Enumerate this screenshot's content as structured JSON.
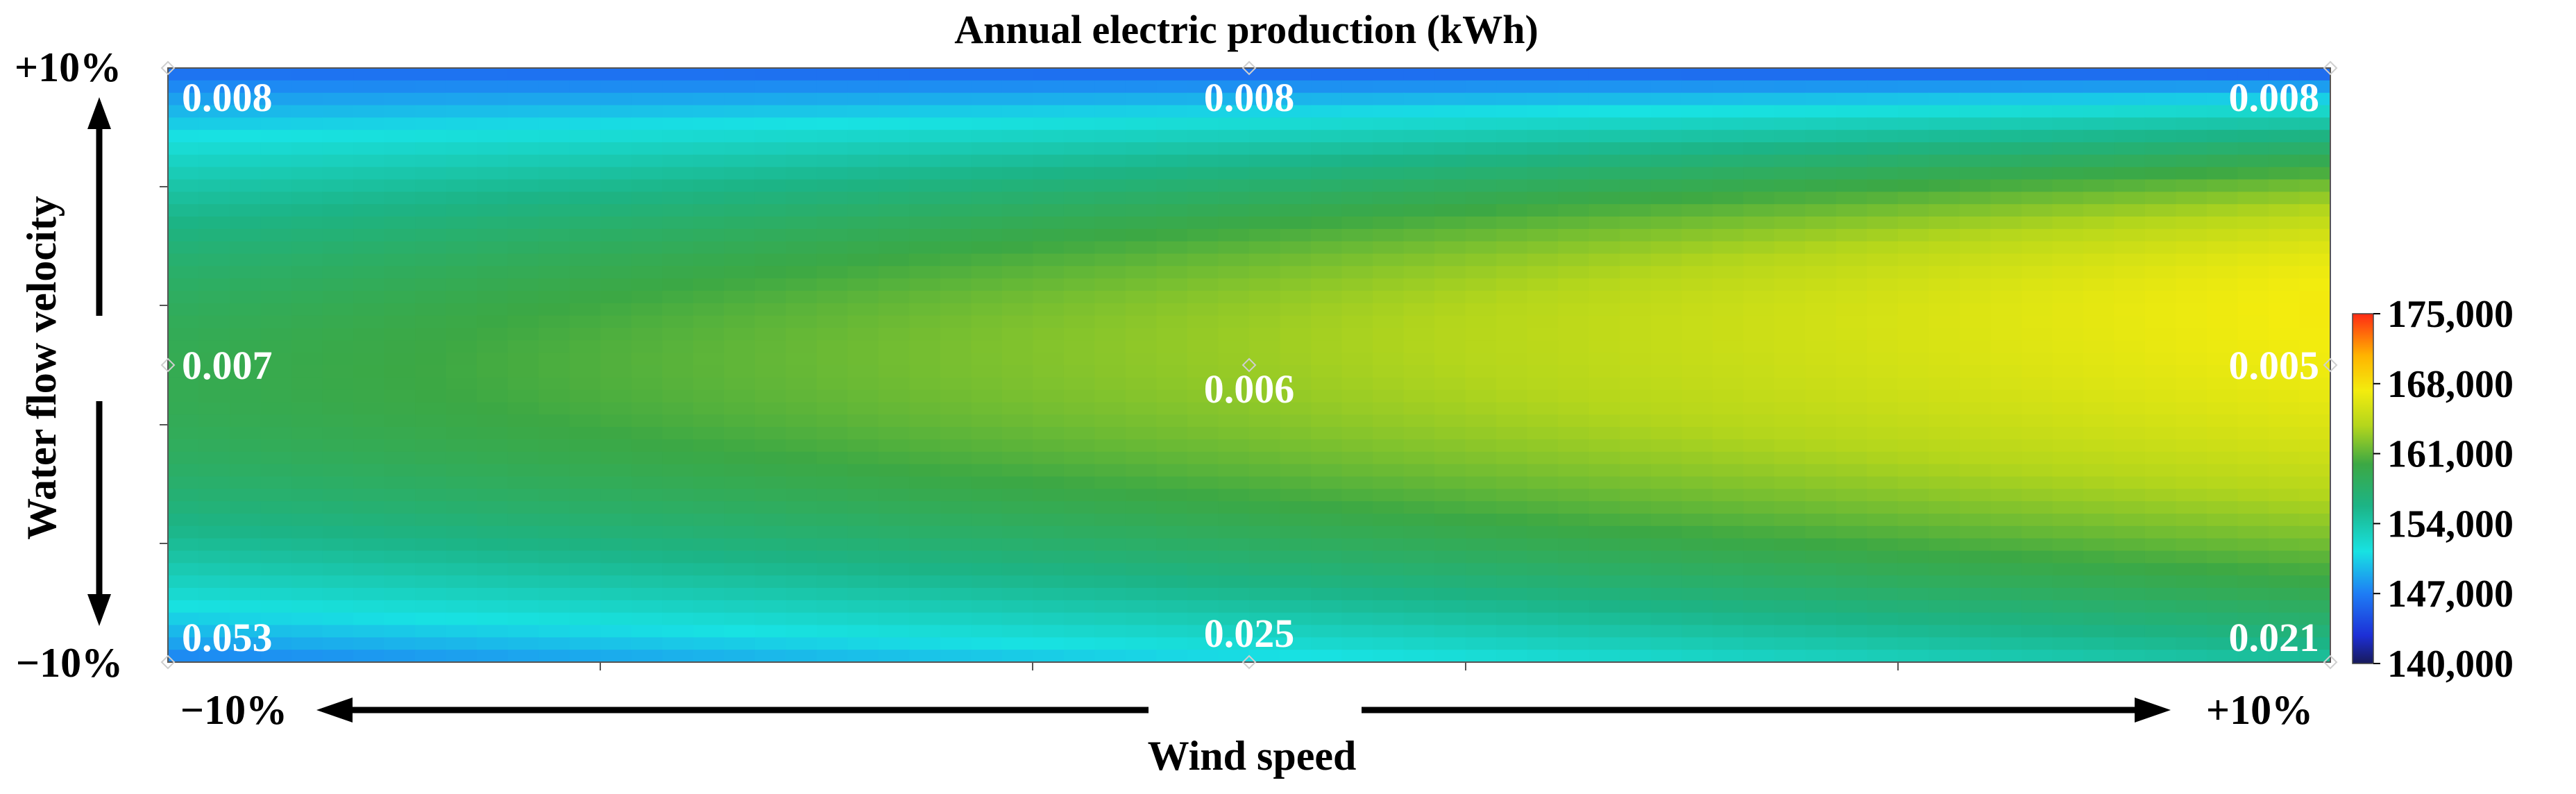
{
  "chart_data": {
    "type": "heatmap",
    "title": "Annual electric production (kWh)",
    "xlabel": "Wind speed",
    "ylabel": "Water flow velocity",
    "x_ticks": [
      "−10%",
      "+10%"
    ],
    "y_ticks": [
      "+10%",
      "−10%"
    ],
    "x": [
      -10,
      0,
      10
    ],
    "y": [
      10,
      0,
      -10
    ],
    "z_estimated_kwh": [
      [
        146000,
        145500,
        145000
      ],
      [
        159000,
        163000,
        167500
      ],
      [
        147000,
        150500,
        154500
      ]
    ],
    "point_labels": [
      {
        "value": "0.008",
        "x": -10,
        "y": 10
      },
      {
        "value": "0.008",
        "x": 0,
        "y": 10
      },
      {
        "value": "0.008",
        "x": 10,
        "y": 10
      },
      {
        "value": "0.007",
        "x": -10,
        "y": 0
      },
      {
        "value": "0.006",
        "x": 0,
        "y": 0
      },
      {
        "value": "0.005",
        "x": 10,
        "y": 0
      },
      {
        "value": "0.053",
        "x": -10,
        "y": -10
      },
      {
        "value": "0.025",
        "x": 0,
        "y": -10
      },
      {
        "value": "0.021",
        "x": 10,
        "y": -10
      }
    ],
    "colorbar": {
      "ticks": [
        "175,000",
        "168,000",
        "161,000",
        "154,000",
        "147,000",
        "140,000"
      ],
      "range": [
        140000,
        175000
      ]
    }
  }
}
